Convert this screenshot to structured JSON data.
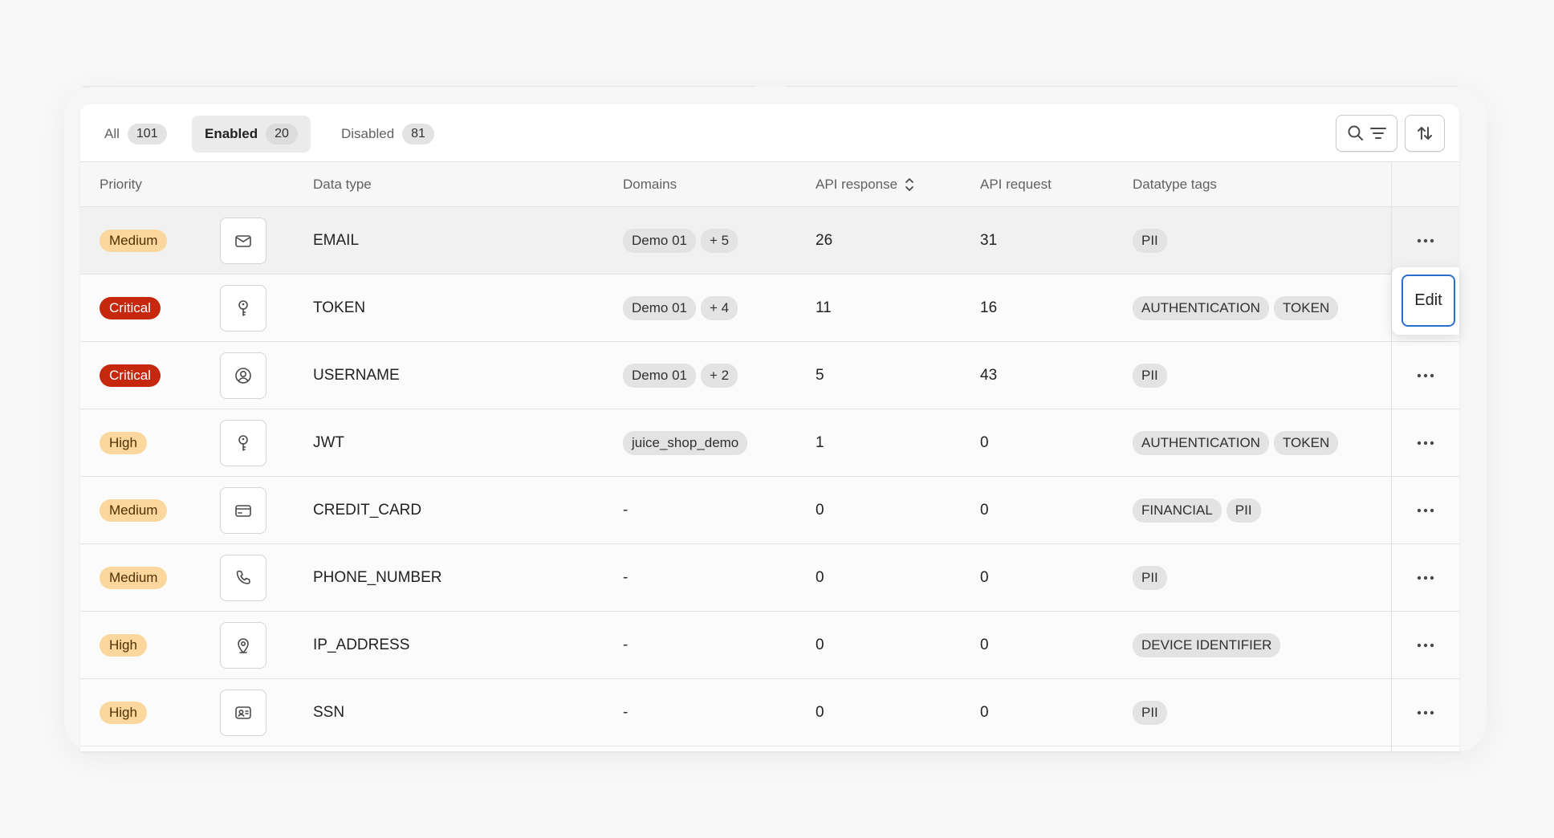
{
  "tabs": [
    {
      "label": "All",
      "count": "101"
    },
    {
      "label": "Enabled",
      "count": "20"
    },
    {
      "label": "Disabled",
      "count": "81"
    }
  ],
  "columns": {
    "priority": "Priority",
    "data_type": "Data type",
    "domains": "Domains",
    "api_response": "API response",
    "api_request": "API request",
    "datatype_tags": "Datatype tags"
  },
  "rows": [
    {
      "priority": "Medium",
      "icon": "mail-icon",
      "data_type": "EMAIL",
      "domains": [
        "Demo 01",
        "+ 5"
      ],
      "api_response": "26",
      "api_request": "31",
      "tags": [
        "PII"
      ]
    },
    {
      "priority": "Critical",
      "icon": "key-icon",
      "data_type": "TOKEN",
      "domains": [
        "Demo 01",
        "+ 4"
      ],
      "api_response": "11",
      "api_request": "16",
      "tags": [
        "AUTHENTICATION",
        "TOKEN"
      ]
    },
    {
      "priority": "Critical",
      "icon": "user-circle-icon",
      "data_type": "USERNAME",
      "domains": [
        "Demo 01",
        "+ 2"
      ],
      "api_response": "5",
      "api_request": "43",
      "tags": [
        "PII"
      ]
    },
    {
      "priority": "High",
      "icon": "key-icon",
      "data_type": "JWT",
      "domains": [
        "juice_shop_demo"
      ],
      "api_response": "1",
      "api_request": "0",
      "tags": [
        "AUTHENTICATION",
        "TOKEN"
      ]
    },
    {
      "priority": "Medium",
      "icon": "credit-card-icon",
      "data_type": "CREDIT_CARD",
      "domains_text": "-",
      "api_response": "0",
      "api_request": "0",
      "tags": [
        "FINANCIAL",
        "PII"
      ]
    },
    {
      "priority": "Medium",
      "icon": "phone-icon",
      "data_type": "PHONE_NUMBER",
      "domains_text": "-",
      "api_response": "0",
      "api_request": "0",
      "tags": [
        "PII"
      ]
    },
    {
      "priority": "High",
      "icon": "location-pin-icon",
      "data_type": "IP_ADDRESS",
      "domains_text": "-",
      "api_response": "0",
      "api_request": "0",
      "tags": [
        "DEVICE IDENTIFIER"
      ]
    },
    {
      "priority": "High",
      "icon": "id-card-icon",
      "data_type": "SSN",
      "domains_text": "-",
      "api_response": "0",
      "api_request": "0",
      "tags": [
        "PII"
      ]
    }
  ],
  "edit_label": "Edit",
  "colors": {
    "critical": "#c5280c",
    "warning": "#fbd79e",
    "focus": "#2c6ecb"
  }
}
